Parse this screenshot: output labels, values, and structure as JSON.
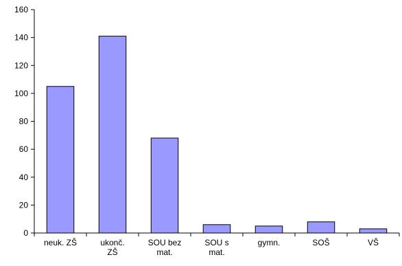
{
  "colors": {
    "bar_fill": "#9999ff",
    "bar_stroke": "#000000",
    "axis": "#000000",
    "background": "#ffffff"
  },
  "chart_data": {
    "type": "bar",
    "title": "",
    "xlabel": "",
    "ylabel": "",
    "ylim": [
      0,
      160
    ],
    "yticks": [
      0,
      20,
      40,
      60,
      80,
      100,
      120,
      140,
      160
    ],
    "grid": false,
    "legend": "none",
    "categories": [
      [
        "neuk. ZŠ"
      ],
      [
        "ukonč.",
        "ZŠ"
      ],
      [
        "SOU bez",
        "mat."
      ],
      [
        "SOU s",
        "mat."
      ],
      [
        "gymn."
      ],
      [
        "SOŠ"
      ],
      [
        "VŠ"
      ]
    ],
    "values": [
      105,
      141,
      68,
      6,
      5,
      8,
      3
    ]
  }
}
